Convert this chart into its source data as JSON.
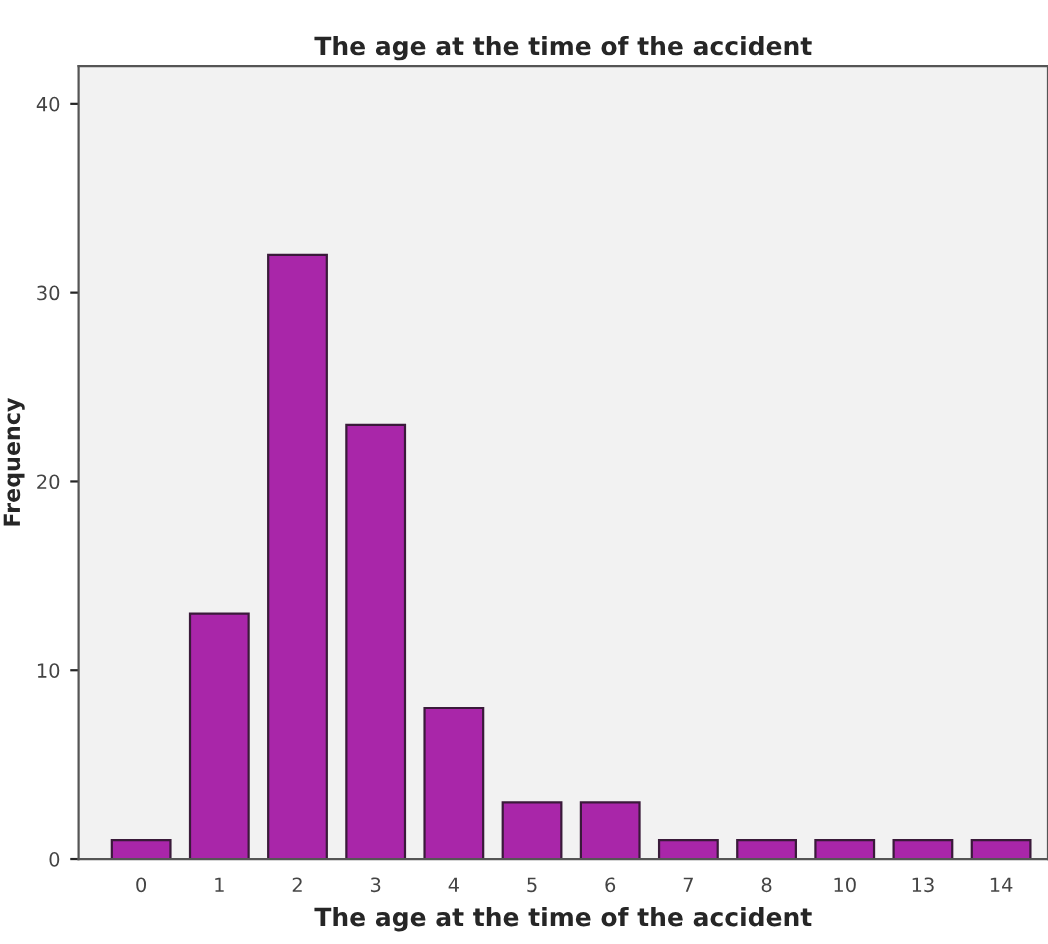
{
  "chart_data": {
    "type": "bar",
    "title": "The age at the time of the accident",
    "xlabel": "The age at the time of the accident",
    "ylabel": "Frequency",
    "categories": [
      "0",
      "1",
      "2",
      "3",
      "4",
      "5",
      "6",
      "7",
      "8",
      "10",
      "13",
      "14"
    ],
    "values": [
      1,
      13,
      32,
      23,
      8,
      3,
      3,
      1,
      1,
      1,
      1,
      1
    ],
    "color": "#a926a9",
    "ylim": [
      0,
      42
    ],
    "yticks": [
      0,
      10,
      20,
      30,
      40
    ],
    "grid": false,
    "legend": false
  }
}
